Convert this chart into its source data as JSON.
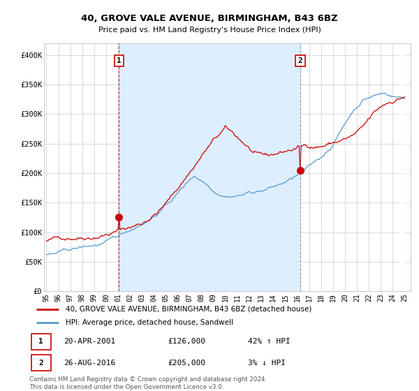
{
  "title": "40, GROVE VALE AVENUE, BIRMINGHAM, B43 6BZ",
  "subtitle": "Price paid vs. HM Land Registry's House Price Index (HPI)",
  "ylim": [
    0,
    420000
  ],
  "yticks": [
    0,
    50000,
    100000,
    150000,
    200000,
    250000,
    300000,
    350000,
    400000
  ],
  "ytick_labels": [
    "£0",
    "£50K",
    "£100K",
    "£150K",
    "£200K",
    "£250K",
    "£300K",
    "£350K",
    "£400K"
  ],
  "background_color": "#ffffff",
  "grid_color": "#cccccc",
  "red_line_color": "#cc0000",
  "blue_line_color": "#5599cc",
  "shade_color": "#ddeeff",
  "marker1_x": 73,
  "marker2_x": 255,
  "marker1_price": 126000,
  "marker2_price": 205000,
  "annotation1": {
    "label": "1",
    "date": "20-APR-2001",
    "price": "£126,000",
    "hpi": "42% ↑ HPI"
  },
  "annotation2": {
    "label": "2",
    "date": "26-AUG-2016",
    "price": "£205,000",
    "hpi": "3% ↓ HPI"
  },
  "legend_red": "40, GROVE VALE AVENUE, BIRMINGHAM, B43 6BZ (detached house)",
  "legend_blue": "HPI: Average price, detached house, Sandwell",
  "footer1": "Contains HM Land Registry data © Crown copyright and database right 2024.",
  "footer2": "This data is licensed under the Open Government Licence v3.0.",
  "x_start_year": 1995,
  "x_end_year": 2025,
  "total_months": 361
}
